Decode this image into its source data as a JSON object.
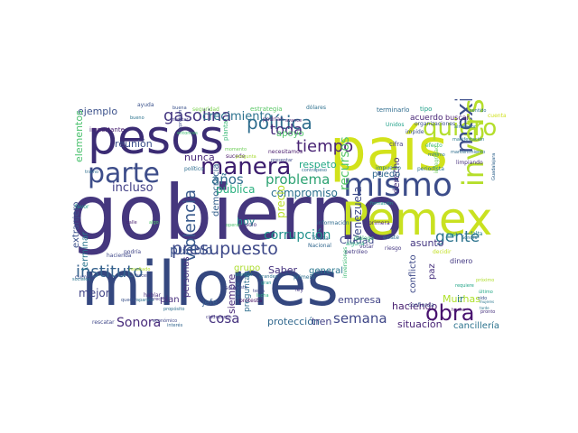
{
  "words": [
    {
      "text": "gobierno",
      "color": "#45377e"
    },
    {
      "text": "millones",
      "color": "#34477f"
    },
    {
      "text": "país",
      "color": "#d2e21b"
    },
    {
      "text": "pesos",
      "color": "#3b2c74"
    },
    {
      "text": "Pemex",
      "color": "#c9e120"
    },
    {
      "text": "parte",
      "color": "#3d4d8a"
    },
    {
      "text": "mismo",
      "color": "#3c4d8a"
    },
    {
      "text": "política",
      "color": "#2f6d8e"
    },
    {
      "text": "quiero",
      "color": "#b4de2c"
    },
    {
      "text": "manera",
      "color": "#3b1c6d"
    },
    {
      "text": "mexicano",
      "color": "#3d4f8b"
    },
    {
      "text": "presupuesto",
      "color": "#3e4989"
    },
    {
      "text": "inversión",
      "color": "#b5de2b"
    },
    {
      "text": "instituto",
      "color": "#35618d"
    },
    {
      "text": "obra",
      "color": "#47106e"
    },
    {
      "text": "gasolina",
      "color": "#453781"
    },
    {
      "text": "crecimiento",
      "color": "#2c728e"
    },
    {
      "text": "tiempo",
      "color": "#482374"
    },
    {
      "text": "toda",
      "color": "#472d7b"
    },
    {
      "text": "problema",
      "color": "#2da272"
    },
    {
      "text": "corrupción",
      "color": "#21918c"
    },
    {
      "text": "gente",
      "color": "#2c738e"
    },
    {
      "text": "violencia",
      "color": "#38598c"
    },
    {
      "text": "Sonora",
      "color": "#472a7a"
    },
    {
      "text": "semana",
      "color": "#3f4788"
    },
    {
      "text": "cosa",
      "color": "#46337f"
    },
    {
      "text": "recursos",
      "color": "#56c667"
    },
    {
      "text": "Venezuela",
      "color": "#3e4a89"
    },
    {
      "text": "años",
      "color": "#2e6f8e"
    },
    {
      "text": "mejor",
      "color": "#414487"
    },
    {
      "text": "pueblo",
      "color": "#3b518b"
    },
    {
      "text": "incluso",
      "color": "#424086"
    },
    {
      "text": "ejemplo",
      "color": "#3b518b"
    },
    {
      "text": "reunión",
      "color": "#3c4f8a"
    },
    {
      "text": "elementos",
      "color": "#4ac16d"
    },
    {
      "text": "extranjero",
      "color": "#3b518b"
    },
    {
      "text": "terminar",
      "color": "#2a768e"
    },
    {
      "text": "nunca",
      "color": "#482979"
    },
    {
      "text": "pública",
      "color": "#2ab07f"
    },
    {
      "text": "hoy",
      "color": "#23898e"
    },
    {
      "text": "respeto",
      "color": "#22a884"
    },
    {
      "text": "compromiso",
      "color": "#2d718e"
    },
    {
      "text": "empresa",
      "color": "#414487"
    },
    {
      "text": "protección",
      "color": "#31688e"
    },
    {
      "text": "tren",
      "color": "#424086"
    },
    {
      "text": "situación",
      "color": "#482475"
    },
    {
      "text": "cancillería",
      "color": "#2c738e"
    },
    {
      "text": "haciendo",
      "color": "#481f70"
    },
    {
      "text": "Muchas",
      "color": "#ade028"
    },
    {
      "text": "asunto",
      "color": "#453882"
    },
    {
      "text": "Saber",
      "color": "#46337f"
    },
    {
      "text": "general",
      "color": "#2a768e"
    },
    {
      "text": "grupo",
      "color": "#addc30"
    },
    {
      "text": "Ciudad",
      "color": "#3e4989"
    },
    {
      "text": "precio",
      "color": "#b8de29"
    },
    {
      "text": "derecho",
      "color": "#46317e"
    },
    {
      "text": "puedo",
      "color": "#31688e"
    },
    {
      "text": "apoyo",
      "color": "#50c46a"
    },
    {
      "text": "democracia",
      "color": "#34608d"
    },
    {
      "text": "personas",
      "color": "#46307e"
    },
    {
      "text": "siempre",
      "color": "#482878"
    },
    {
      "text": "preguntas",
      "color": "#2e6e8e"
    },
    {
      "text": "conflicto",
      "color": "#3e4a89"
    },
    {
      "text": "ir",
      "color": "#2a788e"
    },
    {
      "text": "paz",
      "color": "#46307e"
    },
    {
      "text": "plan",
      "color": "#472e7c"
    },
    {
      "text": "jefe",
      "color": "#355e8d"
    },
    {
      "text": "dinero",
      "color": "#443983"
    },
    {
      "text": "acuerdo",
      "color": "#482576"
    },
    {
      "text": "buscar",
      "color": "#481c6e"
    },
    {
      "text": "terminarlo",
      "color": "#2f6c8e"
    },
    {
      "text": "tipo",
      "color": "#1f9f88"
    },
    {
      "text": "ayuda",
      "color": "#3b528b"
    },
    {
      "text": "dólares",
      "color": "#2d708e"
    },
    {
      "text": "podrían",
      "color": "#482071"
    },
    {
      "text": "estrategia",
      "color": "#58c765"
    },
    {
      "text": "seguridad",
      "color": "#7cd250"
    },
    {
      "text": "combustible",
      "color": "#dae319"
    },
    {
      "text": "Guadalajara",
      "color": "#32658e"
    },
    {
      "text": "cifra",
      "color": "#433d84"
    },
    {
      "text": "efecto",
      "color": "#3aba76"
    },
    {
      "text": "impide",
      "color": "#3b528b"
    },
    {
      "text": "manifestación",
      "color": "#2a788e"
    },
    {
      "text": "importante",
      "color": "#482071"
    },
    {
      "text": "necesitamos",
      "color": "#481a6c"
    },
    {
      "text": "hablar",
      "color": "#472d7b"
    },
    {
      "text": "rescatar",
      "color": "#3f4788"
    },
    {
      "text": "favor",
      "color": "#1e9b8a"
    },
    {
      "text": "cumplir",
      "color": "#3e4989"
    },
    {
      "text": "hacienda",
      "color": "#3f4889"
    },
    {
      "text": "información",
      "color": "#2f6c8e"
    },
    {
      "text": "Toluca",
      "color": "#31678e"
    },
    {
      "text": "formación",
      "color": "#1f9a8a"
    },
    {
      "text": "primera",
      "color": "#482173"
    },
    {
      "text": "riesgo",
      "color": "#453882"
    },
    {
      "text": "confianza",
      "color": "#3d4d8a"
    },
    {
      "text": "decidir",
      "color": "#c2df23"
    },
    {
      "text": "hecho",
      "color": "#481a6c"
    },
    {
      "text": "pronto",
      "color": "#46327e"
    },
    {
      "text": "sociales",
      "color": "#2b758e"
    },
    {
      "text": "interés",
      "color": "#32658e"
    },
    {
      "text": "económico",
      "color": "#3f4788"
    },
    {
      "text": "ciudadanos",
      "color": "#443983"
    },
    {
      "text": "propósito",
      "color": "#2e6e8e"
    },
    {
      "text": "protesta",
      "color": "#471164"
    },
    {
      "text": "Nacional",
      "color": "#31678e"
    },
    {
      "text": "petróleo",
      "color": "#443983"
    },
    {
      "text": "Unidos",
      "color": "#1fa088"
    },
    {
      "text": "organizaciones",
      "color": "#3b528b"
    },
    {
      "text": "periodista",
      "color": "#2c718e"
    },
    {
      "text": "limpiando",
      "color": "#472f7d"
    },
    {
      "text": "impuesto",
      "color": "#2a778e"
    },
    {
      "text": "planta",
      "color": "#3aba76"
    },
    {
      "text": "sucede",
      "color": "#481769"
    },
    {
      "text": "trabajo",
      "color": "#31678e"
    },
    {
      "text": "primero",
      "color": "#2d708e"
    },
    {
      "text": "ley",
      "color": "#443a83"
    },
    {
      "text": "casi",
      "color": "#1f9e89"
    },
    {
      "text": "falta",
      "color": "#26818e"
    },
    {
      "text": "integridad",
      "color": "#6ccd5a"
    },
    {
      "text": "alguna",
      "color": "#2ab07f"
    },
    {
      "text": "existe",
      "color": "#2c738e"
    },
    {
      "text": "diálogo",
      "color": "#3dbc74"
    },
    {
      "text": "votar",
      "color": "#443a83"
    },
    {
      "text": "sido",
      "color": "#3a538b"
    },
    {
      "text": "último",
      "color": "#22a785"
    },
    {
      "text": "requiere",
      "color": "#20a386"
    },
    {
      "text": "próximo",
      "color": "#b0dd2f"
    },
    {
      "text": "mujeres",
      "color": "#2a768e"
    },
    {
      "text": "tarde",
      "color": "#2a788e"
    },
    {
      "text": "inversiones",
      "color": "#3dbc74"
    },
    {
      "text": "presentar",
      "color": "#3e4989"
    },
    {
      "text": "avance",
      "color": "#481d6f"
    },
    {
      "text": "contrapeso",
      "color": "#2f6b8e"
    },
    {
      "text": "solo",
      "color": "#46337f"
    },
    {
      "text": "gasto",
      "color": "#3e4a89"
    },
    {
      "text": "sólo",
      "color": "#423f85"
    },
    {
      "text": "calle",
      "color": "#481f70"
    },
    {
      "text": "algo",
      "color": "#4ec36b"
    },
    {
      "text": "político",
      "color": "#2e6d8e"
    },
    {
      "text": "momento",
      "color": "#6ece58"
    },
    {
      "text": "pregunta",
      "color": "#a8db34"
    },
    {
      "text": "operar",
      "color": "#4ac16d"
    },
    {
      "text": "grandes",
      "color": "#2c728e"
    },
    {
      "text": "tema",
      "color": "#3f4889"
    },
    {
      "text": "atender",
      "color": "#26828e"
    },
    {
      "text": "gran",
      "color": "#1f948c"
    },
    {
      "text": "quedar",
      "color": "#3b528b"
    },
    {
      "text": "derecha",
      "color": "#443983"
    },
    {
      "text": "aparato",
      "color": "#2d708e"
    },
    {
      "text": "podría",
      "color": "#404588"
    },
    {
      "text": "hacer",
      "color": "#3f4788"
    },
    {
      "text": "resultado",
      "color": "#b5de2b"
    },
    {
      "text": "lucha",
      "color": "#29af7f"
    },
    {
      "text": "buena",
      "color": "#3b528b"
    },
    {
      "text": "entonces",
      "color": "#3fbc73"
    },
    {
      "text": "expresión",
      "color": "#3f4889"
    },
    {
      "text": "mínimo",
      "color": "#2a778e"
    },
    {
      "text": "mantenimiento",
      "color": "#2e6e8e"
    },
    {
      "text": "alrededor",
      "color": "#2c728e"
    },
    {
      "text": "insertar",
      "color": "#433e85"
    },
    {
      "text": "bueno",
      "color": "#2c738e"
    },
    {
      "text": "cuenta",
      "color": "#d0e11c"
    },
    {
      "text": "Sonora",
      "color": "#2e6f8e"
    },
    {
      "text": "sentido",
      "color": "#2c738e"
    },
    {
      "text": "tramo",
      "color": "#2e6e8e"
    }
  ]
}
